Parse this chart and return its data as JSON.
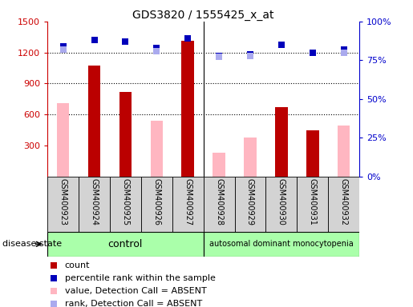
{
  "title": "GDS3820 / 1555425_x_at",
  "samples": [
    "GSM400923",
    "GSM400924",
    "GSM400925",
    "GSM400926",
    "GSM400927",
    "GSM400928",
    "GSM400929",
    "GSM400930",
    "GSM400931",
    "GSM400932"
  ],
  "count_values": [
    null,
    1070,
    820,
    null,
    1310,
    null,
    null,
    670,
    450,
    null
  ],
  "count_color": "#bb0000",
  "absent_value_values": [
    710,
    null,
    null,
    540,
    null,
    230,
    380,
    null,
    null,
    490
  ],
  "absent_value_color": "#ffb6c1",
  "percentile_rank_values": [
    84,
    88,
    87,
    83,
    89,
    78,
    79,
    85,
    80,
    82
  ],
  "percentile_rank_color": "#0000bb",
  "absent_rank_values": [
    82,
    null,
    null,
    81,
    null,
    77,
    78,
    null,
    null,
    80
  ],
  "absent_rank_color": "#aaaaee",
  "ylim_left": [
    0,
    1500
  ],
  "ylim_right": [
    0,
    100
  ],
  "yticks_left": [
    300,
    600,
    900,
    1200,
    1500
  ],
  "yticks_right": [
    0,
    25,
    50,
    75,
    100
  ],
  "left_tick_color": "#cc0000",
  "right_tick_color": "#0000cc",
  "control_label": "control",
  "disease_label": "autosomal dominant monocytopenia",
  "disease_state_label": "disease state",
  "control_color": "#aaffaa",
  "disease_color": "#aaffaa",
  "bg_color": "#d3d3d3",
  "legend_items": [
    "count",
    "percentile rank within the sample",
    "value, Detection Call = ABSENT",
    "rank, Detection Call = ABSENT"
  ],
  "legend_colors": [
    "#bb0000",
    "#0000bb",
    "#ffb6c1",
    "#aaaaee"
  ],
  "bar_width": 0.4,
  "marker_size": 6,
  "dotted_gridlines": [
    600,
    900,
    1200
  ]
}
